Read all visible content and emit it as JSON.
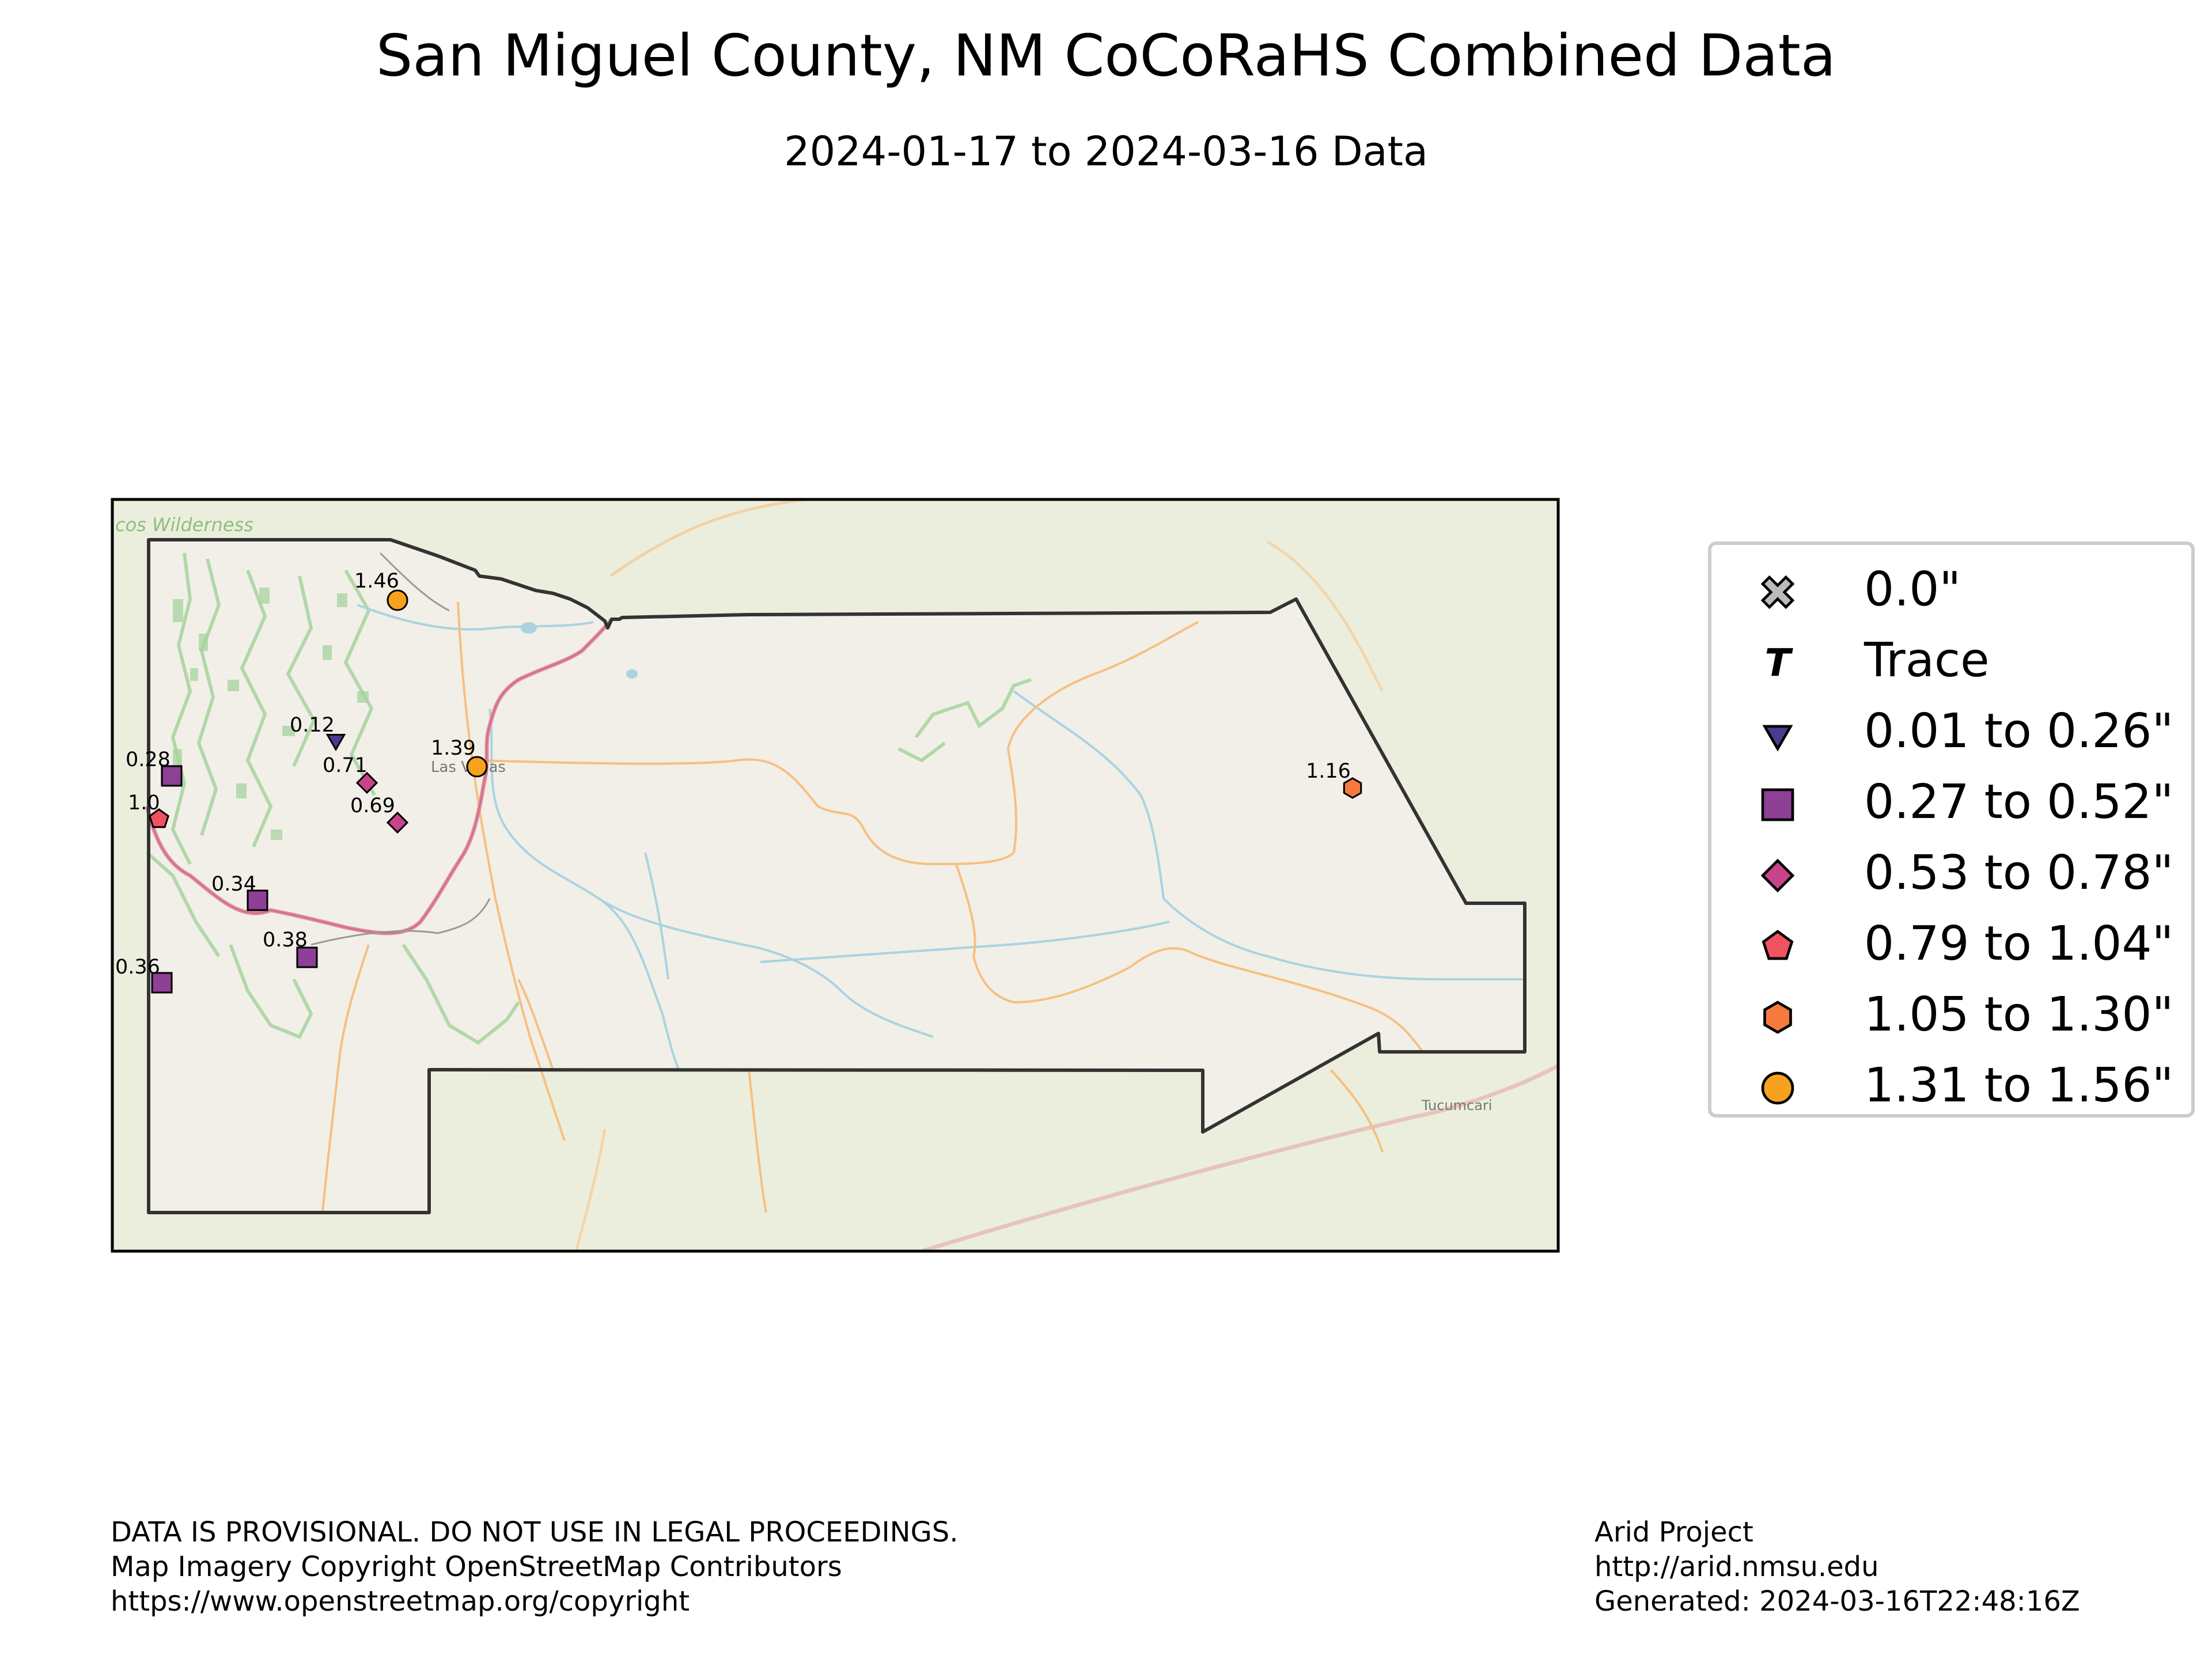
{
  "title": "San Miguel County, NM CoCoRaHS Combined Data",
  "subtitle": "2024-01-17 to 2024-03-16 Data",
  "map": {
    "basemap_labels": {
      "wilderness": "cos Wilderness",
      "town_las_vegas": "Las Vegas",
      "town_tucumcari": "Tucumcari"
    },
    "colors": {
      "county_outline": "#333333",
      "basemap_land": "#eceedd",
      "county_fill": "#f2efe9",
      "forest": "#a7d39d",
      "water": "#aad3df",
      "road_major": "#e38aa0",
      "road_minor": "#f6c07f"
    }
  },
  "legend": {
    "items": [
      {
        "label": "0.0\"",
        "marker": "x-icon",
        "color": "#bbbbbb"
      },
      {
        "label": "Trace",
        "marker": "trace-t-icon",
        "color": "#000000"
      },
      {
        "label": "0.01 to 0.26\"",
        "marker": "triangle-down-icon",
        "color": "#4a3c8c"
      },
      {
        "label": "0.27 to 0.52\"",
        "marker": "square-icon",
        "color": "#8e3f96"
      },
      {
        "label": "0.53 to 0.78\"",
        "marker": "diamond-icon",
        "color": "#c8438c"
      },
      {
        "label": "0.79 to 1.04\"",
        "marker": "pentagon-icon",
        "color": "#f0525f"
      },
      {
        "label": "1.05 to 1.30\"",
        "marker": "hexagon-icon",
        "color": "#f57a3d"
      },
      {
        "label": "1.31 to 1.56\"",
        "marker": "circle-icon",
        "color": "#f6a21e"
      }
    ]
  },
  "stations": [
    {
      "label": "1.46",
      "marker": "circle-icon",
      "color": "#f6a21e"
    },
    {
      "label": "0.12",
      "marker": "triangle-down-icon",
      "color": "#4a3c8c"
    },
    {
      "label": "1.39",
      "marker": "circle-icon",
      "color": "#f6a21e"
    },
    {
      "label": "0.28",
      "marker": "square-icon",
      "color": "#8e3f96"
    },
    {
      "label": "0.71",
      "marker": "diamond-icon",
      "color": "#c8438c"
    },
    {
      "label": "0.69",
      "marker": "diamond-icon",
      "color": "#c8438c"
    },
    {
      "label": "1.0",
      "marker": "pentagon-icon",
      "color": "#f0525f"
    },
    {
      "label": "1.16",
      "marker": "hexagon-icon",
      "color": "#f57a3d"
    },
    {
      "label": "0.34",
      "marker": "square-icon",
      "color": "#8e3f96"
    },
    {
      "label": "0.38",
      "marker": "square-icon",
      "color": "#8e3f96"
    },
    {
      "label": "0.36",
      "marker": "square-icon",
      "color": "#8e3f96"
    }
  ],
  "footer": {
    "left": [
      "DATA IS PROVISIONAL. DO NOT USE IN LEGAL PROCEEDINGS.",
      "Map Imagery Copyright OpenStreetMap Contributors",
      "https://www.openstreetmap.org/copyright"
    ],
    "right": [
      "Arid Project",
      "http://arid.nmsu.edu",
      "Generated: 2024-03-16T22:48:16Z"
    ]
  }
}
